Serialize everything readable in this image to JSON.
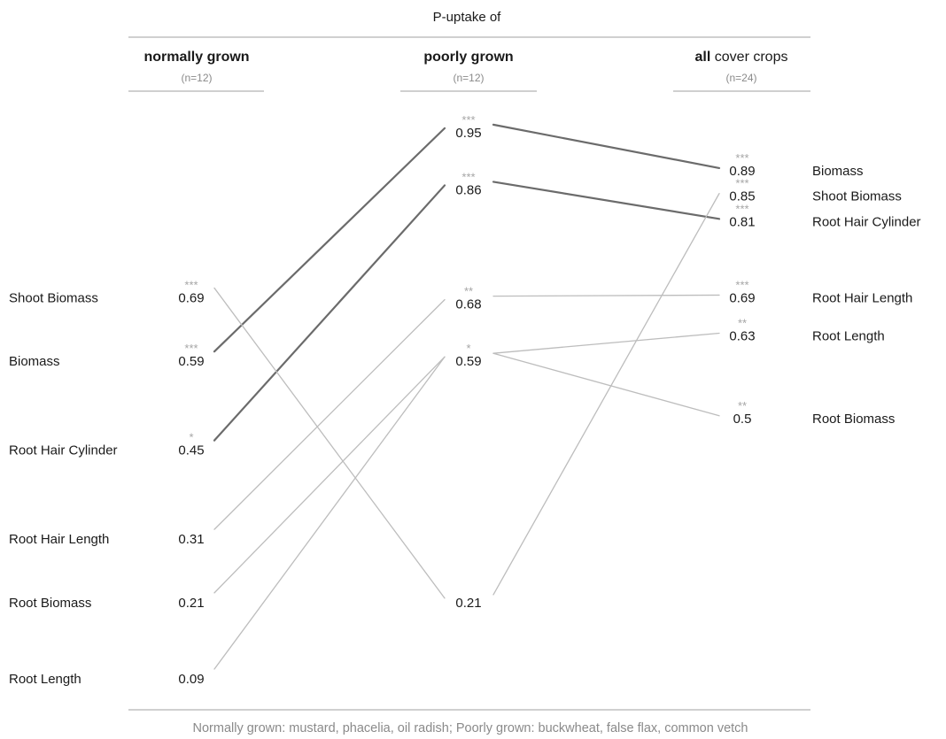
{
  "chart_data": {
    "type": "slopegraph",
    "title": "P-uptake of",
    "columns": [
      {
        "key": "normal",
        "title_bold": "normally grown",
        "title_rest": "",
        "n_label": "(n=12)"
      },
      {
        "key": "poor",
        "title_bold": "poorly grown",
        "title_rest": "",
        "n_label": "(n=12)"
      },
      {
        "key": "all",
        "title_bold": "all",
        "title_rest": " cover crops",
        "n_label": "(n=24)"
      }
    ],
    "normal": [
      {
        "label": "Shoot Biomass",
        "value": 0.69,
        "display": "0.69",
        "stars": "***"
      },
      {
        "label": "Biomass",
        "value": 0.59,
        "display": "0.59",
        "stars": "***"
      },
      {
        "label": "Root Hair Cylinder",
        "value": 0.45,
        "display": "0.45",
        "stars": "*"
      },
      {
        "label": "Root Hair Length",
        "value": 0.31,
        "display": "0.31",
        "stars": ""
      },
      {
        "label": "Root Biomass",
        "value": 0.21,
        "display": "0.21",
        "stars": ""
      },
      {
        "label": "Root Length",
        "value": 0.09,
        "display": "0.09",
        "stars": ""
      }
    ],
    "poor": [
      {
        "value": 0.95,
        "display": "0.95",
        "stars": "***"
      },
      {
        "value": 0.86,
        "display": "0.86",
        "stars": "***"
      },
      {
        "value": 0.68,
        "display": "0.68",
        "stars": "**"
      },
      {
        "value": 0.59,
        "display": "0.59",
        "stars": "*"
      },
      {
        "value": 0.21,
        "display": "0.21",
        "stars": ""
      }
    ],
    "all": [
      {
        "label": "Biomass",
        "value": 0.89,
        "display": "0.89",
        "stars": "***"
      },
      {
        "label": "Shoot Biomass",
        "value": 0.85,
        "display": "0.85",
        "stars": "***"
      },
      {
        "label": "Root Hair Cylinder",
        "value": 0.81,
        "display": "0.81",
        "stars": "***"
      },
      {
        "label": "Root Hair Length",
        "value": 0.69,
        "display": "0.69",
        "stars": "***"
      },
      {
        "label": "Root Length",
        "value": 0.63,
        "display": "0.63",
        "stars": "**"
      },
      {
        "label": "Root Biomass",
        "value": 0.5,
        "display": "0.5",
        "stars": "**"
      }
    ],
    "links": [
      {
        "variable": "Biomass",
        "normal": 0.59,
        "poor": 0.95,
        "all": 0.89,
        "emphasis": true
      },
      {
        "variable": "Root Hair Cylinder",
        "normal": 0.45,
        "poor": 0.86,
        "all": 0.81,
        "emphasis": true
      },
      {
        "variable": "Shoot Biomass",
        "normal": 0.69,
        "poor": 0.21,
        "all": 0.85,
        "emphasis": false
      },
      {
        "variable": "Root Hair Length",
        "normal": 0.31,
        "poor": 0.68,
        "all": 0.69,
        "emphasis": false
      },
      {
        "variable": "Root Biomass",
        "normal": 0.21,
        "poor": 0.59,
        "all": 0.5,
        "emphasis": false
      },
      {
        "variable": "Root Length",
        "normal": 0.09,
        "poor": 0.59,
        "all": 0.63,
        "emphasis": false
      }
    ],
    "footnote": "Normally grown: mustard, phacelia, oil radish; Poorly grown: buckwheat, false flax, common vetch",
    "colors": {
      "emphasis_line": "#6b6b6b",
      "light_line": "#bdbdbd",
      "stars": "#a6a6a6",
      "rule": "#b5b5b5",
      "text": "#1a1a1a",
      "n_label": "#8a8a8a"
    }
  }
}
